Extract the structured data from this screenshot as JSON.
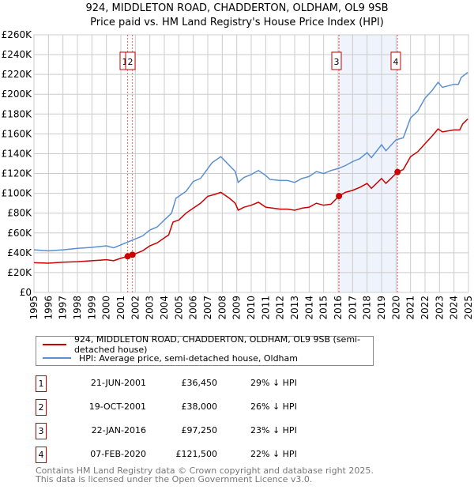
{
  "chart_data": {
    "type": "line",
    "title": "924, MIDDLETON ROAD, CHADDERTON, OLDHAM, OL9 9SB",
    "subtitle": "Price paid vs. HM Land Registry's House Price Index (HPI)",
    "xlim": [
      1995,
      2025
    ],
    "ylim": [
      0,
      260000
    ],
    "yticks": [
      "£0",
      "£20K",
      "£40K",
      "£60K",
      "£80K",
      "£100K",
      "£120K",
      "£140K",
      "£160K",
      "£180K",
      "£200K",
      "£220K",
      "£240K",
      "£260K"
    ],
    "xticks": [
      "1995",
      "1996",
      "1997",
      "1998",
      "1999",
      "2000",
      "2001",
      "2002",
      "2003",
      "2004",
      "2005",
      "2006",
      "2007",
      "2008",
      "2009",
      "2010",
      "2011",
      "2012",
      "2013",
      "2014",
      "2015",
      "2016",
      "2017",
      "2018",
      "2019",
      "2020",
      "2021",
      "2022",
      "2023",
      "2024",
      "2025"
    ],
    "grid": true,
    "series": [
      {
        "name": "924, MIDDLETON ROAD, CHADDERTON, OLDHAM, OL9 9SB (semi-detached house)",
        "color": "#cc0000",
        "x": [
          1995,
          1996,
          1997,
          1998,
          1999,
          2000,
          2000.5,
          2001,
          2001.47,
          2001.8,
          2002,
          2002.5,
          2003,
          2003.5,
          2004,
          2004.3,
          2004.6,
          2005,
          2005.5,
          2006,
          2006.5,
          2007,
          2007.5,
          2007.9,
          2008.5,
          2008.9,
          2009.1,
          2009.5,
          2010,
          2010.5,
          2011,
          2011.5,
          2012,
          2012.5,
          2013,
          2013.5,
          2014,
          2014.5,
          2015,
          2015.5,
          2016.06,
          2016.5,
          2017,
          2017.5,
          2018,
          2018.3,
          2019,
          2019.3,
          2020.1,
          2020.5,
          2021,
          2021.5,
          2022,
          2022.5,
          2022.9,
          2023.2,
          2024,
          2024.4,
          2024.6,
          2024.95
        ],
        "y": [
          30,
          29.5,
          30.5,
          31,
          32,
          33,
          32,
          34.5,
          36.45,
          38,
          39,
          42,
          47,
          50,
          55,
          58,
          71,
          73,
          80,
          85,
          90,
          97,
          99,
          101,
          95,
          90,
          83,
          86,
          88,
          91,
          86,
          85,
          84,
          84,
          83,
          85,
          86,
          90,
          88,
          89,
          97.25,
          101,
          103,
          106,
          110,
          105,
          115,
          110,
          121.5,
          124,
          137,
          142,
          150,
          158,
          165,
          162,
          164,
          164,
          170,
          175
        ]
      },
      {
        "name": "HPI: Average price, semi-detached house, Oldham",
        "color": "#5b8fd0",
        "x": [
          1995,
          1996,
          1997,
          1998,
          1999,
          2000,
          2000.5,
          2001,
          2001.5,
          2002,
          2002.5,
          2003,
          2003.5,
          2004,
          2004.5,
          2004.8,
          2005,
          2005.5,
          2006,
          2006.5,
          2007,
          2007.3,
          2007.9,
          2008.5,
          2008.9,
          2009.1,
          2009.5,
          2010,
          2010.5,
          2011,
          2011.3,
          2012,
          2012.5,
          2013,
          2013.5,
          2014,
          2014.5,
          2015,
          2015.5,
          2016,
          2016.5,
          2017,
          2017.5,
          2018,
          2018.3,
          2019,
          2019.3,
          2020,
          2020.5,
          2021,
          2021.5,
          2022,
          2022.5,
          2022.9,
          2023.2,
          2024,
          2024.3,
          2024.5,
          2024.95
        ],
        "y": [
          43,
          42,
          43,
          44.5,
          45.5,
          47,
          45,
          48,
          51,
          54,
          57,
          63,
          66,
          73,
          80,
          95,
          97,
          102,
          112,
          115,
          125,
          131,
          137,
          128,
          122,
          111,
          116,
          119,
          123,
          118,
          114,
          113,
          113,
          111,
          115,
          117,
          122,
          120,
          123,
          125,
          128,
          132,
          135,
          141,
          136,
          149,
          143,
          154,
          156,
          176,
          183,
          196,
          204,
          212,
          207,
          210,
          210,
          217,
          222
        ]
      }
    ],
    "y_units": "thousands GBP",
    "sales": [
      {
        "n": "1",
        "date": "21-JUN-2001",
        "price": "£36,450",
        "hpi": "29% ↓ HPI",
        "x": 2001.47,
        "y": 36.45
      },
      {
        "n": "2",
        "date": "19-OCT-2001",
        "price": "£38,000",
        "hpi": "26% ↓ HPI",
        "x": 2001.8,
        "y": 38
      },
      {
        "n": "3",
        "date": "22-JAN-2016",
        "price": "£97,250",
        "hpi": "23% ↓ HPI",
        "x": 2016.06,
        "y": 97.25
      },
      {
        "n": "4",
        "date": "07-FEB-2020",
        "price": "£121,500",
        "hpi": "22% ↓ HPI",
        "x": 2020.1,
        "y": 121.5
      }
    ]
  },
  "legend": {
    "red": "924, MIDDLETON ROAD, CHADDERTON, OLDHAM, OL9 9SB (semi-detached house)",
    "blue": "HPI: Average price, semi-detached house, Oldham"
  },
  "footer": {
    "line1": "Contains HM Land Registry data © Crown copyright and database right 2025.",
    "line2": "This data is licensed under the Open Government Licence v3.0."
  }
}
